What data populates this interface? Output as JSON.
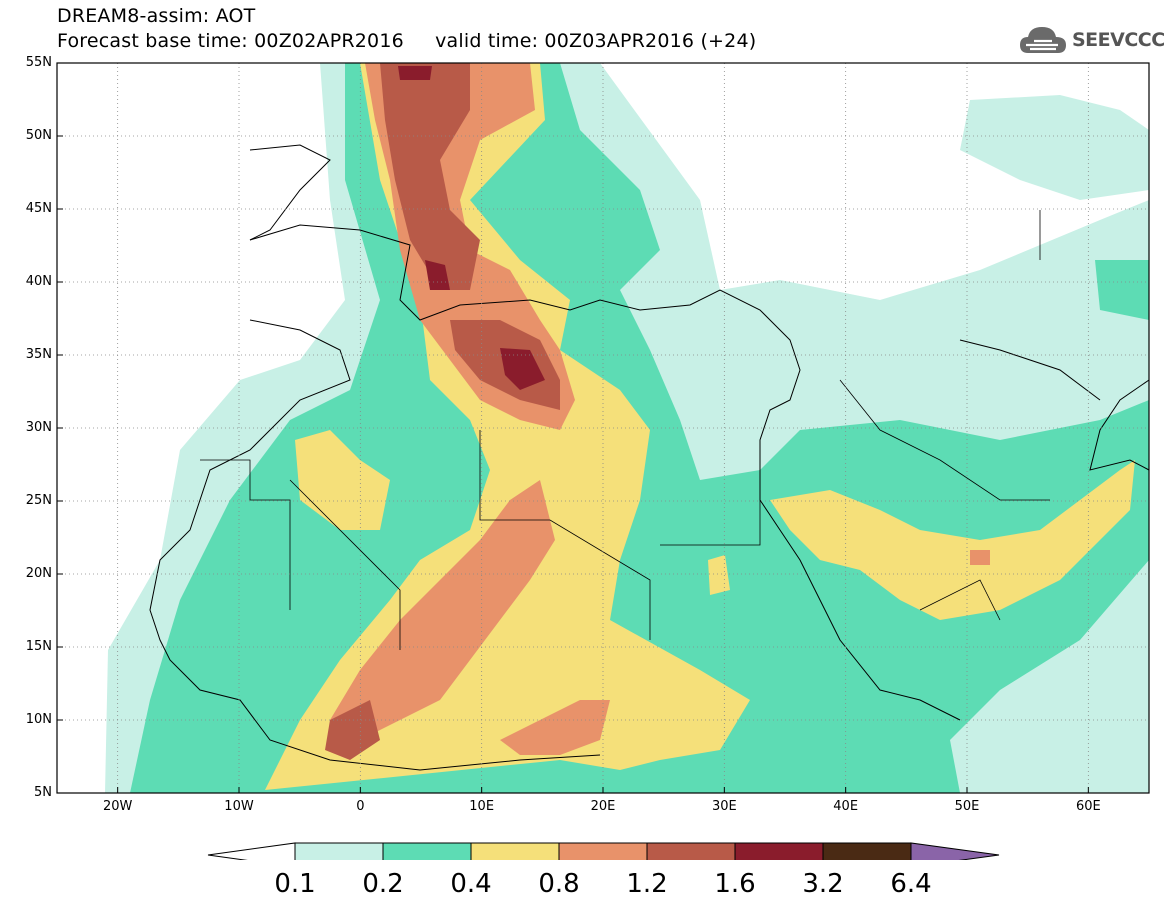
{
  "header": {
    "line1": "DREAM8-assim: AOT",
    "line2": "Forecast base time: 00Z02APR2016     valid time: 00Z03APR2016 (+24)"
  },
  "logo": {
    "text": "SEEVCCC",
    "icon": "cloud-icon"
  },
  "map": {
    "lon_range": [
      -25,
      65
    ],
    "lat_range": [
      5,
      55
    ],
    "projection": "cylindrical equidistant",
    "grid": "dotted",
    "lat_labels": [
      "55N",
      "50N",
      "45N",
      "40N",
      "35N",
      "30N",
      "25N",
      "20N",
      "15N",
      "10N",
      "5N"
    ],
    "lon_labels": [
      "20W",
      "10W",
      "0",
      "10E",
      "20E",
      "30E",
      "40E",
      "50E",
      "60E"
    ]
  },
  "colorbar": {
    "labels": [
      "0.1",
      "0.2",
      "0.4",
      "0.8",
      "1.2",
      "1.6",
      "3.2",
      "6.4"
    ],
    "colors": [
      "#c8f0e6",
      "#5ddcb4",
      "#f5e07a",
      "#e8926a",
      "#b85a48",
      "#8a1c2c",
      "#4a2a14",
      "#8a64a8"
    ],
    "under_color": "#ffffff"
  }
}
